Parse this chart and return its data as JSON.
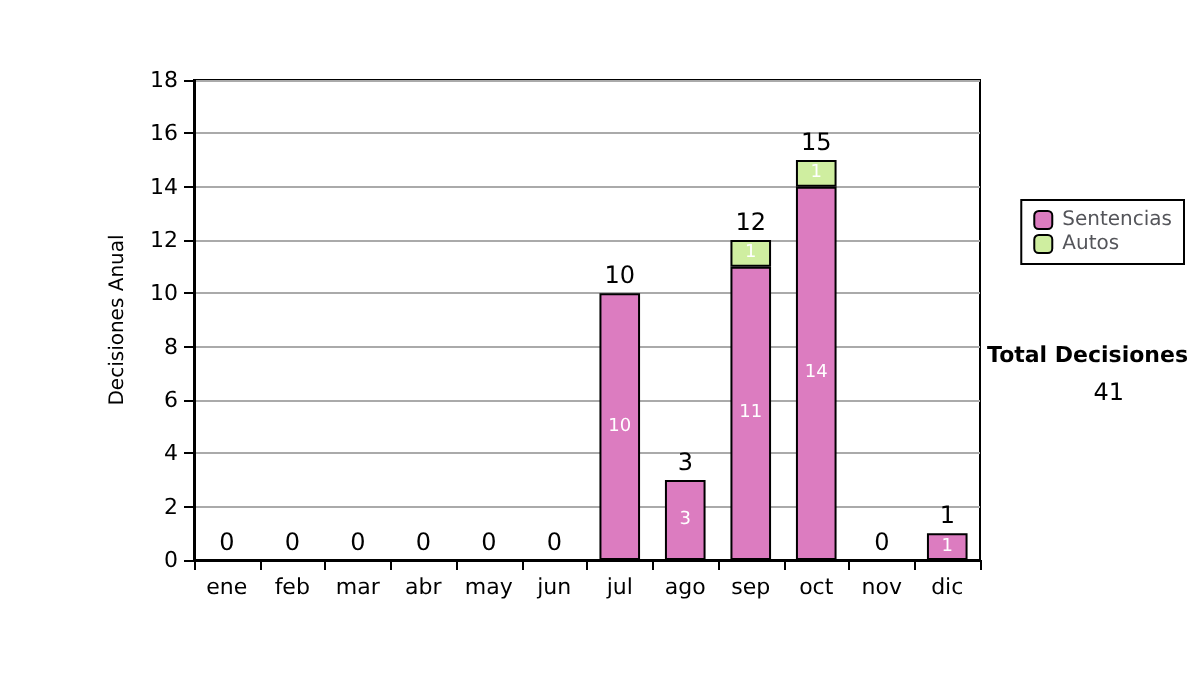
{
  "chart_data": {
    "type": "bar",
    "stacked": true,
    "ylabel": "Decisiones Anual",
    "categories": [
      "ene",
      "feb",
      "mar",
      "abr",
      "may",
      "jun",
      "jul",
      "ago",
      "sep",
      "oct",
      "nov",
      "dic"
    ],
    "series": [
      {
        "name": "Sentencias",
        "color": "#dc7cc0",
        "values": [
          0,
          0,
          0,
          0,
          0,
          0,
          10,
          3,
          11,
          14,
          0,
          1
        ],
        "value_labels": [
          null,
          null,
          null,
          null,
          null,
          null,
          "10",
          "3",
          "11",
          "14",
          null,
          "1"
        ]
      },
      {
        "name": "Autos",
        "color": "#cfeea0",
        "values": [
          0,
          0,
          0,
          0,
          0,
          0,
          0,
          0,
          1,
          1,
          0,
          0
        ],
        "value_labels": [
          null,
          null,
          null,
          null,
          null,
          null,
          null,
          null,
          "1",
          "1",
          null,
          null
        ]
      }
    ],
    "totals": [
      "0",
      "0",
      "0",
      "0",
      "0",
      "0",
      "10",
      "3",
      "12",
      "15",
      "0",
      "1"
    ],
    "ylim": [
      0,
      18
    ],
    "yticks": [
      0,
      2,
      4,
      6,
      8,
      10,
      12,
      14,
      16,
      18
    ],
    "grid": "y",
    "legend": "right",
    "annotations": [
      "Total Decisiones",
      "41"
    ]
  }
}
